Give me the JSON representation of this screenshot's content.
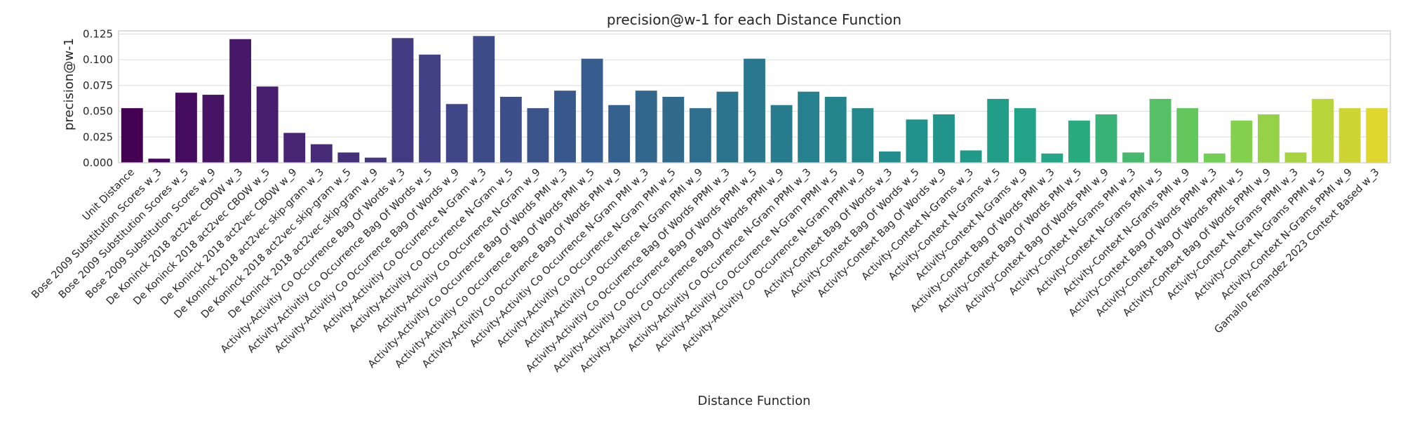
{
  "chart_data": {
    "type": "bar",
    "title": "precision@w-1 for each Distance Function",
    "xlabel": "Distance Function",
    "ylabel": "precision@w-1",
    "ylim": [
      0,
      0.128
    ],
    "yticks": [
      "0.000",
      "0.025",
      "0.050",
      "0.075",
      "0.100",
      "0.125"
    ],
    "grid": true,
    "palette": "viridis",
    "categories": [
      "Unit Distance",
      "Bose 2009 Substitution Scores w_3",
      "Bose 2009 Substitution Scores w_5",
      "Bose 2009 Substitution Scores w_9",
      "De Koninck 2018 act2vec CBOW w_3",
      "De Koninck 2018 act2vec CBOW w_5",
      "De Koninck 2018 act2vec CBOW w_9",
      "De Koninck 2018 act2vec skip-gram w_3",
      "De Koninck 2018 act2vec skip-gram w_5",
      "De Koninck 2018 act2vec skip-gram w_9",
      "Activity-Activitiy Co Occurrence Bag Of Words w_3",
      "Activity-Activitiy Co Occurrence Bag Of Words w_5",
      "Activity-Activitiy Co Occurrence Bag Of Words w_9",
      "Activity-Activitiy Co Occurrence N-Gram w_3",
      "Activity-Activitiy Co Occurrence N-Gram w_5",
      "Activity-Activitiy Co Occurrence N-Gram w_9",
      "Activity-Activitiy Co Occurrence Bag Of Words PMI w_3",
      "Activity-Activitiy Co Occurrence Bag Of Words PMI w_5",
      "Activity-Activitiy Co Occurrence Bag Of Words PMI w_9",
      "Activity-Activitiy Co Occurrence N-Gram PMI w_3",
      "Activity-Activitiy Co Occurrence N-Gram PMI w_5",
      "Activity-Activitiy Co Occurrence N-Gram PMI w_9",
      "Activity-Activitiy Co Occurrence Bag Of Words PPMI w_3",
      "Activity-Activitiy Co Occurrence Bag Of Words PPMI w_5",
      "Activity-Activitiy Co Occurrence Bag Of Words PPMI w_9",
      "Activity-Activitiy Co Occurrence N-Gram PPMI w_3",
      "Activity-Activitiy Co Occurrence N-Gram PPMI w_5",
      "Activity-Activitiy Co Occurrence N-Gram PPMI w_9",
      "Activity-Context Bag Of Words w_3",
      "Activity-Context Bag Of Words w_5",
      "Activity-Context Bag Of Words w_9",
      "Activity-Context N-Grams w_3",
      "Activity-Context N-Grams w_5",
      "Activity-Context N-Grams w_9",
      "Activity-Context Bag Of Words PMI w_3",
      "Activity-Context Bag Of Words PMI w_5",
      "Activity-Context Bag Of Words PMI w_9",
      "Activity-Context N-Grams PMI w_3",
      "Activity-Context N-Grams PMI w_5",
      "Activity-Context N-Grams PMI w_9",
      "Activity-Context Bag Of Words PPMI w_3",
      "Activity-Context Bag Of Words PPMI w_5",
      "Activity-Context Bag Of Words PPMI w_9",
      "Activity-Context N-Grams PPMI w_3",
      "Activity-Context N-Grams PPMI w_5",
      "Activity-Context N-Grams PPMI w_9",
      "Gamallo Fernandez 2023 Context Based w_3"
    ],
    "values": [
      0.053,
      0.004,
      0.068,
      0.066,
      0.12,
      0.074,
      0.029,
      0.018,
      0.01,
      0.005,
      0.121,
      0.105,
      0.057,
      0.123,
      0.064,
      0.053,
      0.07,
      0.101,
      0.056,
      0.07,
      0.064,
      0.053,
      0.069,
      0.101,
      0.056,
      0.069,
      0.064,
      0.053,
      0.011,
      0.042,
      0.047,
      0.012,
      0.062,
      0.053,
      0.009,
      0.041,
      0.047,
      0.01,
      0.062,
      0.053,
      0.009,
      0.041,
      0.047,
      0.01,
      0.062,
      0.053,
      0.053
    ]
  }
}
